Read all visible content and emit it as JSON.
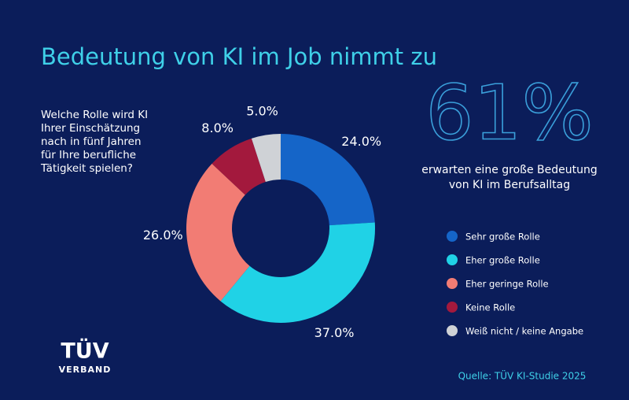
{
  "chart_data": {
    "type": "pie",
    "title": "Bedeutung von KI im Job nimmt zu",
    "question": [
      "Welche Rolle wird KI",
      "Ihrer Einschätzung",
      "nach in fünf Jahren",
      "für Ihre berufliche",
      "Tätigkeit spielen?"
    ],
    "highlight": "61%",
    "highlight_text": [
      "erwarten eine große Bedeutung",
      "von KI im Berufsalltag"
    ],
    "categories": [
      "Sehr große Rolle",
      "Eher große Rolle",
      "Eher geringe Rolle",
      "Keine Rolle",
      "Weiß nicht / keine Angabe"
    ],
    "values": [
      24,
      37,
      26,
      8,
      5
    ],
    "value_labels": [
      "24.0%",
      "37.0%",
      "26.0%",
      "8.0%",
      "5.0%"
    ],
    "colors": [
      "#1565c8",
      "#20d2e6",
      "#f27c74",
      "#a3193d",
      "#cfd2d6"
    ],
    "source": "Quelle: TÜV KI-Studie 2025",
    "logo": {
      "name": "TÜV",
      "sub": "VERBAND"
    }
  }
}
